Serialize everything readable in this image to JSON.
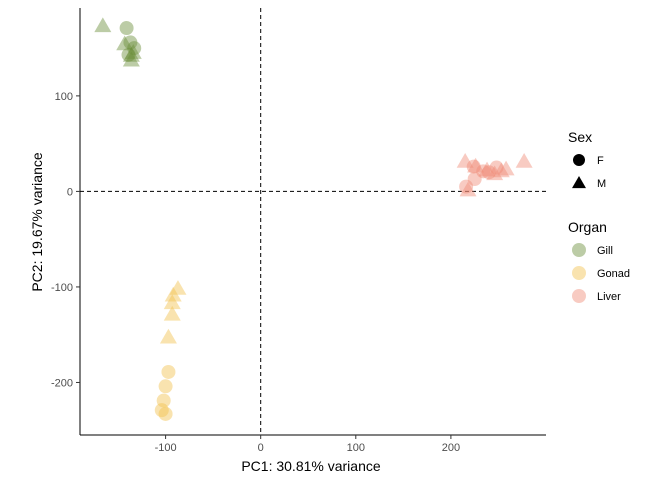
{
  "chart_data": {
    "type": "scatter",
    "title": "",
    "xlabel": "PC1: 30.81% variance",
    "ylabel": "PC2: 19.67% variance",
    "xlim": [
      -190,
      300
    ],
    "ylim": [
      -255,
      192
    ],
    "xticks": [
      -100,
      0,
      100,
      200
    ],
    "yticks": [
      -200,
      -100,
      0,
      100
    ],
    "xtick_labels": [
      "-100",
      "0",
      "100",
      "200"
    ],
    "ytick_labels": [
      "-200",
      "-100",
      "0",
      "100"
    ],
    "reference_lines": {
      "x": 0,
      "y": 0,
      "style": "dashed"
    },
    "grid": false,
    "legend_position": "right",
    "legends": [
      {
        "title": "Sex",
        "items": [
          {
            "label": "F",
            "shape": "circle",
            "color": "#000000"
          },
          {
            "label": "M",
            "shape": "triangle",
            "color": "#000000"
          }
        ]
      },
      {
        "title": "Organ",
        "items": [
          {
            "label": "Gill",
            "shape": "circle",
            "color": "#6B8E3A"
          },
          {
            "label": "Gonad",
            "shape": "circle",
            "color": "#F2C14E"
          },
          {
            "label": "Liver",
            "shape": "circle",
            "color": "#F08C78"
          }
        ]
      }
    ],
    "groups": [
      {
        "organ": "Gill",
        "sex": "F",
        "color": "#6B8E3A",
        "shape": "circle",
        "points": [
          [
            -141,
            171
          ],
          [
            -137,
            156
          ],
          [
            -133,
            150
          ],
          [
            -139,
            143
          ]
        ]
      },
      {
        "organ": "Gill",
        "sex": "M",
        "color": "#6B8E3A",
        "shape": "triangle",
        "points": [
          [
            -166,
            172
          ],
          [
            -143,
            153
          ],
          [
            -136,
            141
          ],
          [
            -134,
            144
          ],
          [
            -136,
            136
          ]
        ]
      },
      {
        "organ": "Gonad",
        "sex": "F",
        "color": "#F2C14E",
        "shape": "circle",
        "points": [
          [
            -97,
            -189
          ],
          [
            -100,
            -204
          ],
          [
            -102,
            -219
          ],
          [
            -104,
            -229
          ],
          [
            -100,
            -233
          ]
        ]
      },
      {
        "organ": "Gonad",
        "sex": "M",
        "color": "#F2C14E",
        "shape": "triangle",
        "points": [
          [
            -87,
            -103
          ],
          [
            -92,
            -110
          ],
          [
            -93,
            -118
          ],
          [
            -93,
            -130
          ],
          [
            -97,
            -154
          ]
        ]
      },
      {
        "organ": "Liver",
        "sex": "F",
        "color": "#F08C78",
        "shape": "circle",
        "points": [
          [
            224,
            26
          ],
          [
            234,
            21
          ],
          [
            240,
            20
          ],
          [
            248,
            25
          ],
          [
            225,
            13
          ],
          [
            216,
            5
          ]
        ]
      },
      {
        "organ": "Liver",
        "sex": "M",
        "color": "#F08C78",
        "shape": "triangle",
        "points": [
          [
            215,
            30
          ],
          [
            226,
            25
          ],
          [
            238,
            21
          ],
          [
            246,
            17
          ],
          [
            258,
            22
          ],
          [
            277,
            30
          ],
          [
            218,
            0
          ],
          [
            253,
            20
          ]
        ]
      }
    ]
  }
}
